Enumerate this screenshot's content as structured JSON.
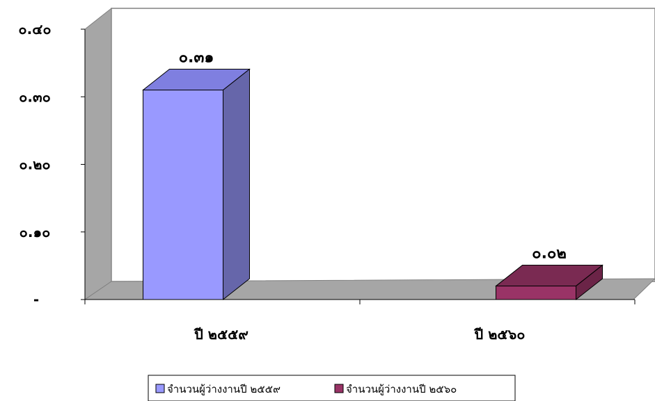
{
  "chart_data": {
    "type": "bar",
    "categories": [
      "ปี ๒๕๕๙",
      "ปี ๒๕๖๐"
    ],
    "values": [
      0.31,
      0.02
    ],
    "data_labels": [
      "๐.๓๑",
      "๐.๐๒"
    ],
    "ylim": [
      0,
      0.4
    ],
    "yticks": [
      0,
      0.1,
      0.2,
      0.3,
      0.4
    ],
    "ytick_labels": [
      "-",
      "๐.๑๐",
      "๐.๒๐",
      "๐.๓๐",
      "๐.๔๐"
    ],
    "legend": {
      "position": "bottom",
      "entries": [
        {
          "label": "จำนวนผู้ว่างงานปี ๒๕๕๙",
          "color": "#9999ff"
        },
        {
          "label": "จำนวนผู้ว่างงานปี ๒๕๖๐",
          "color": "#993366"
        }
      ]
    },
    "colors": {
      "bar1_front": "#9999ff",
      "bar1_top": "#7f7fe0",
      "bar1_side": "#6666aa",
      "bar2_front": "#993366",
      "bar2_top": "#7a2a52",
      "bar2_side": "#6b2447",
      "wall": "#ffffff",
      "side_wall": "#a6a6a6",
      "floor": "#a6a6a6"
    },
    "grid": false,
    "style": "3d-column"
  }
}
